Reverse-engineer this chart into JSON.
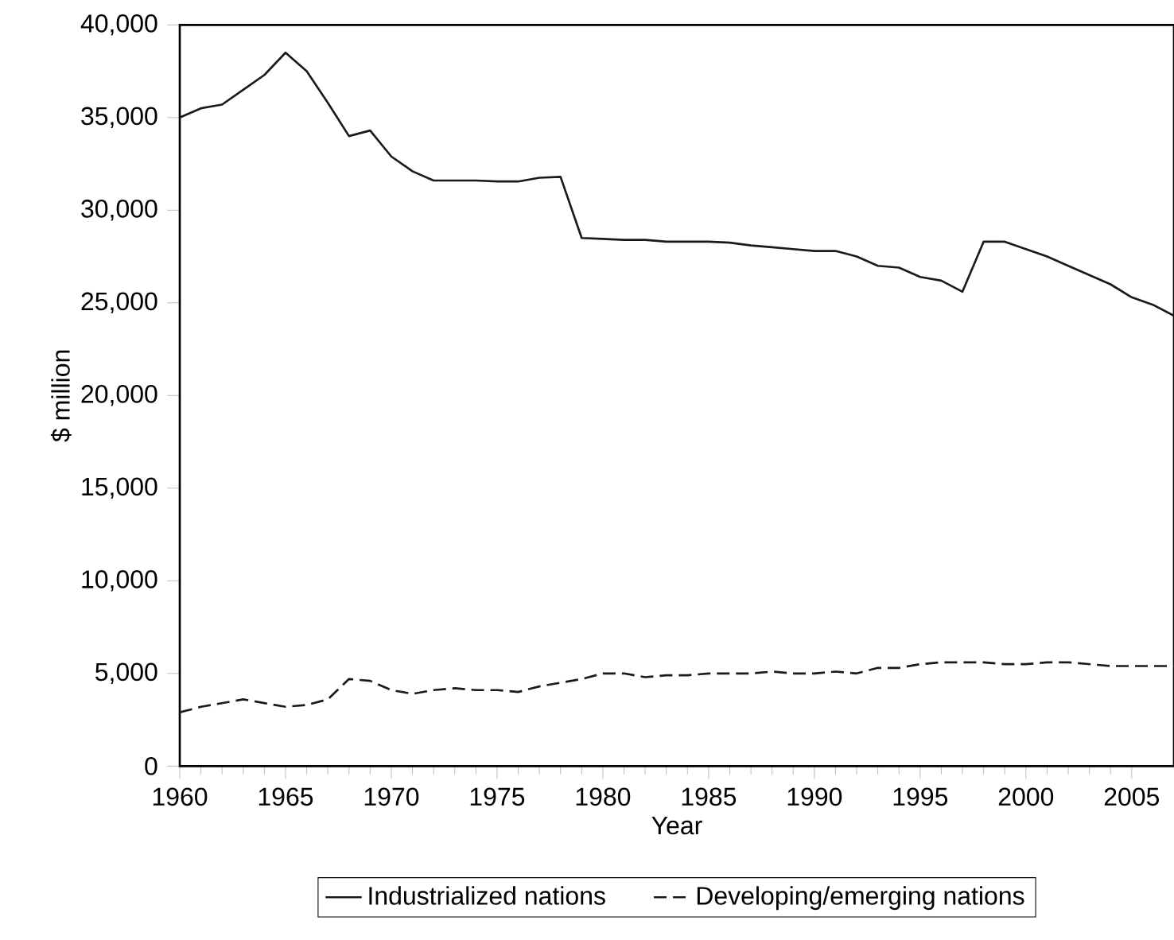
{
  "chart_data": {
    "type": "line",
    "xlabel": "Year",
    "ylabel": "$ million",
    "x": [
      1960,
      1961,
      1962,
      1963,
      1964,
      1965,
      1966,
      1967,
      1968,
      1969,
      1970,
      1971,
      1972,
      1973,
      1974,
      1975,
      1976,
      1977,
      1978,
      1979,
      1980,
      1981,
      1982,
      1983,
      1984,
      1985,
      1986,
      1987,
      1988,
      1989,
      1990,
      1991,
      1992,
      1993,
      1994,
      1995,
      1996,
      1997,
      1998,
      1999,
      2000,
      2001,
      2002,
      2003,
      2004,
      2005,
      2006,
      2007
    ],
    "series": [
      {
        "name": "Industrialized nations",
        "color": "#1a1a1a",
        "line_style": "solid",
        "values": [
          35000,
          35500,
          35700,
          36500,
          37300,
          38500,
          37500,
          35800,
          34000,
          34300,
          32900,
          32100,
          31600,
          31600,
          31600,
          31550,
          31550,
          31750,
          31800,
          28500,
          28450,
          28400,
          28400,
          28300,
          28300,
          28300,
          28250,
          28100,
          28000,
          27900,
          27800,
          27800,
          27500,
          27000,
          26900,
          26400,
          26200,
          25600,
          28300,
          28300,
          27900,
          27500,
          27000,
          26500,
          26000,
          25300,
          24900,
          24300
        ]
      },
      {
        "name": "Developing/emerging nations",
        "color": "#1a1a1a",
        "line_style": "dashed",
        "values": [
          2900,
          3200,
          3400,
          3600,
          3400,
          3200,
          3300,
          3600,
          4700,
          4600,
          4100,
          3900,
          4100,
          4200,
          4100,
          4100,
          4000,
          4300,
          4500,
          4700,
          5000,
          5000,
          4800,
          4900,
          4900,
          5000,
          5000,
          5000,
          5100,
          5000,
          5000,
          5100,
          5000,
          5300,
          5300,
          5500,
          5600,
          5600,
          5600,
          5500,
          5500,
          5600,
          5600,
          5500,
          5400,
          5400,
          5400,
          5400
        ]
      }
    ],
    "xlim": [
      1960,
      2007
    ],
    "xticks": [
      1960,
      1965,
      1970,
      1975,
      1980,
      1985,
      1990,
      1995,
      2000,
      2005
    ],
    "ylim": [
      0,
      40000
    ],
    "yticks": [
      {
        "value": 0,
        "label": "0"
      },
      {
        "value": 5000,
        "label": "5,000"
      },
      {
        "value": 10000,
        "label": "10,000"
      },
      {
        "value": 15000,
        "label": "15,000"
      },
      {
        "value": 20000,
        "label": "20,000"
      },
      {
        "value": 25000,
        "label": "25,000"
      },
      {
        "value": 30000,
        "label": "30,000"
      },
      {
        "value": 35000,
        "label": "35,000"
      },
      {
        "value": 40000,
        "label": "40,000"
      }
    ],
    "grid": false,
    "legend": "bottom",
    "marker": "none"
  }
}
